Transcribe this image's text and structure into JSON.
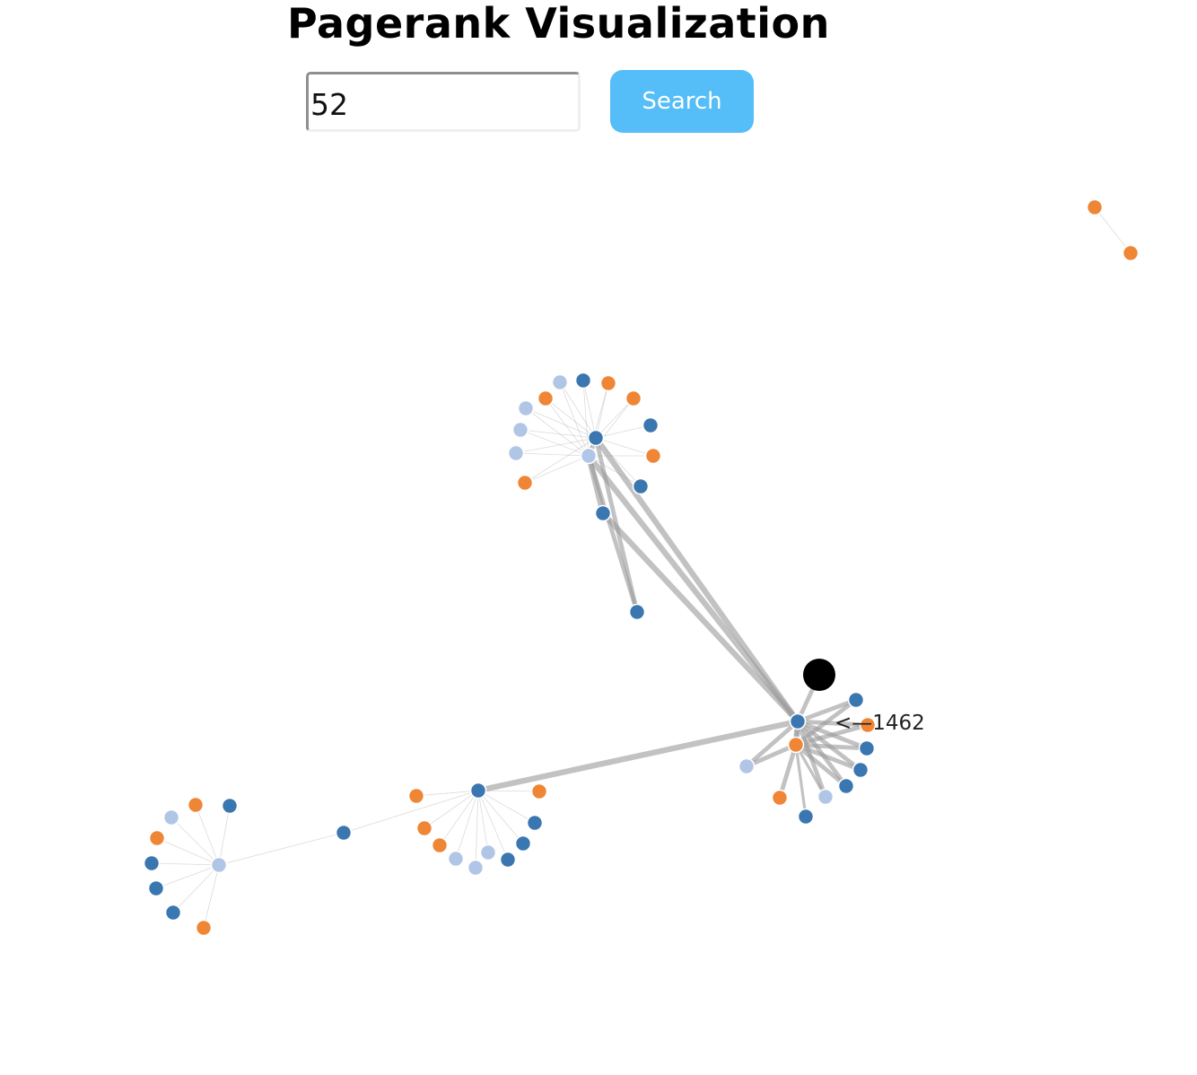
{
  "header": {
    "title": "Pagerank Visualization"
  },
  "search": {
    "value": "52",
    "button_label": "Search"
  },
  "colors": {
    "group1": "#3a76af",
    "group2": "#ef8636",
    "group3": "#b1c6e6",
    "highlight": "#000000",
    "link": "#999999"
  },
  "graph": {
    "nodes": [
      {
        "id": "h1",
        "group": 1
      },
      {
        "id": "h2",
        "group": 3
      },
      {
        "id": "h3",
        "group": 1
      },
      {
        "id": "h4",
        "group": 1
      },
      {
        "id": "h5",
        "group": 2
      },
      {
        "id": "h6",
        "group": 1
      },
      {
        "id": "h7",
        "group": 3
      },
      {
        "id": "c1",
        "group": 1
      },
      {
        "id": "c2",
        "group": 3
      },
      {
        "id": "c3",
        "group": 2
      },
      {
        "id": "c4",
        "group": 2
      },
      {
        "id": "c5",
        "group": 1
      },
      {
        "id": "c6",
        "group": 2
      },
      {
        "id": "c7",
        "group": 1
      },
      {
        "id": "c8",
        "group": 2
      },
      {
        "id": "c9",
        "group": 2
      },
      {
        "id": "c10",
        "group": 3
      },
      {
        "id": "c11",
        "group": 3
      },
      {
        "id": "c12",
        "group": 3
      },
      {
        "id": "c13",
        "group": 3
      },
      {
        "id": "c14",
        "group": 1
      },
      {
        "id": "c15",
        "group": 2
      },
      {
        "id": "c16",
        "group": 1
      },
      {
        "id": "r1",
        "group": 1
      },
      {
        "id": "r2",
        "group": 2
      },
      {
        "id": "r3",
        "group": 1
      },
      {
        "id": "r4",
        "group": 1
      },
      {
        "id": "r5",
        "group": 2
      },
      {
        "id": "r6",
        "group": 1
      },
      {
        "id": "r7",
        "group": 1
      },
      {
        "id": "r8",
        "group": 1
      },
      {
        "id": "r9",
        "group": 3
      },
      {
        "id": "r10",
        "group": 1
      },
      {
        "id": "r11",
        "group": 2
      },
      {
        "id": "r12",
        "group": 3
      },
      {
        "id": "r13",
        "group": 4,
        "label": "<—1462"
      },
      {
        "id": "b1",
        "group": 1
      },
      {
        "id": "b2",
        "group": 2
      },
      {
        "id": "b3",
        "group": 2
      },
      {
        "id": "b4",
        "group": 1
      },
      {
        "id": "b5",
        "group": 1
      },
      {
        "id": "b6",
        "group": 1
      },
      {
        "id": "b7",
        "group": 3
      },
      {
        "id": "b8",
        "group": 3
      },
      {
        "id": "b9",
        "group": 3
      },
      {
        "id": "b10",
        "group": 2
      },
      {
        "id": "b11",
        "group": 2
      },
      {
        "id": "b12",
        "group": 1
      },
      {
        "id": "l1",
        "group": 3
      },
      {
        "id": "l2",
        "group": 2
      },
      {
        "id": "l3",
        "group": 3
      },
      {
        "id": "l4",
        "group": 1
      },
      {
        "id": "l5",
        "group": 2
      },
      {
        "id": "l6",
        "group": 1
      },
      {
        "id": "l7",
        "group": 1
      },
      {
        "id": "l8",
        "group": 1
      },
      {
        "id": "l9",
        "group": 2
      },
      {
        "id": "t1",
        "group": 2
      },
      {
        "id": "t2",
        "group": 2
      }
    ],
    "links": [
      {
        "source": "h1",
        "target": "c2",
        "value": 3
      },
      {
        "source": "h1",
        "target": "c1",
        "value": 3
      },
      {
        "source": "h2",
        "target": "c1",
        "value": 4
      },
      {
        "source": "h2",
        "target": "c16",
        "value": 4
      },
      {
        "source": "h2",
        "target": "c2",
        "value": 4
      },
      {
        "source": "h2",
        "target": "r1",
        "value": 4
      },
      {
        "source": "h2",
        "target": "r2",
        "value": 4
      },
      {
        "source": "h2",
        "target": "b1",
        "value": 4
      },
      {
        "source": "b1",
        "target": "h3",
        "value": 1
      },
      {
        "source": "b1",
        "target": "b2",
        "value": 0.5
      },
      {
        "source": "b1",
        "target": "b3",
        "value": 0.5
      },
      {
        "source": "b1",
        "target": "b4",
        "value": 0.5
      },
      {
        "source": "b1",
        "target": "b5",
        "value": 0.5
      },
      {
        "source": "b1",
        "target": "b6",
        "value": 0.5
      },
      {
        "source": "b1",
        "target": "b7",
        "value": 0.5
      },
      {
        "source": "b1",
        "target": "b8",
        "value": 0.5
      },
      {
        "source": "b1",
        "target": "b9",
        "value": 0.5
      },
      {
        "source": "b1",
        "target": "b10",
        "value": 0.5
      },
      {
        "source": "b1",
        "target": "b11",
        "value": 0.5
      },
      {
        "source": "b1",
        "target": "b12",
        "value": 0.5
      },
      {
        "source": "b12",
        "target": "l1",
        "value": 0.5
      },
      {
        "source": "l1",
        "target": "l2",
        "value": 0.5
      },
      {
        "source": "l1",
        "target": "l3",
        "value": 0.5
      },
      {
        "source": "l1",
        "target": "l4",
        "value": 0.5
      },
      {
        "source": "l1",
        "target": "l5",
        "value": 0.5
      },
      {
        "source": "l1",
        "target": "l6",
        "value": 0.5
      },
      {
        "source": "l1",
        "target": "l7",
        "value": 0.5
      },
      {
        "source": "l1",
        "target": "l8",
        "value": 0.5
      },
      {
        "source": "l1",
        "target": "l9",
        "value": 0.5
      },
      {
        "source": "c1",
        "target": "c2",
        "value": 3
      },
      {
        "source": "c1",
        "target": "c3",
        "value": 0.5
      },
      {
        "source": "c1",
        "target": "c4",
        "value": 0.5
      },
      {
        "source": "c1",
        "target": "c5",
        "value": 0.5
      },
      {
        "source": "c1",
        "target": "c6",
        "value": 0.5
      },
      {
        "source": "c1",
        "target": "c7",
        "value": 0.5
      },
      {
        "source": "c1",
        "target": "c8",
        "value": 0.5
      },
      {
        "source": "c1",
        "target": "c9",
        "value": 0.5
      },
      {
        "source": "c1",
        "target": "c10",
        "value": 0.5
      },
      {
        "source": "c1",
        "target": "c11",
        "value": 0.5
      },
      {
        "source": "c1",
        "target": "c12",
        "value": 0.5
      },
      {
        "source": "c1",
        "target": "c13",
        "value": 0.5
      },
      {
        "source": "c1",
        "target": "c14",
        "value": 0.5
      },
      {
        "source": "c1",
        "target": "c15",
        "value": 0.5
      },
      {
        "source": "c2",
        "target": "c3",
        "value": 0.5
      },
      {
        "source": "c2",
        "target": "c4",
        "value": 0.5
      },
      {
        "source": "c2",
        "target": "c5",
        "value": 0.5
      },
      {
        "source": "c2",
        "target": "c6",
        "value": 0.5
      },
      {
        "source": "c2",
        "target": "c8",
        "value": 0.5
      },
      {
        "source": "c2",
        "target": "c9",
        "value": 0.5
      },
      {
        "source": "c2",
        "target": "c10",
        "value": 0.5
      },
      {
        "source": "c2",
        "target": "c11",
        "value": 0.5
      },
      {
        "source": "c2",
        "target": "c12",
        "value": 0.5
      },
      {
        "source": "c2",
        "target": "c13",
        "value": 0.5
      },
      {
        "source": "c2",
        "target": "c14",
        "value": 0.5
      },
      {
        "source": "c16",
        "target": "c2",
        "value": 4
      },
      {
        "source": "r1",
        "target": "r2",
        "value": 3
      },
      {
        "source": "r1",
        "target": "r3",
        "value": 3
      },
      {
        "source": "r1",
        "target": "r4",
        "value": 3
      },
      {
        "source": "r1",
        "target": "r5",
        "value": 3
      },
      {
        "source": "r1",
        "target": "r6",
        "value": 3
      },
      {
        "source": "r1",
        "target": "r7",
        "value": 3
      },
      {
        "source": "r1",
        "target": "r9",
        "value": 3
      },
      {
        "source": "r1",
        "target": "r12",
        "value": 3
      },
      {
        "source": "r1",
        "target": "r13",
        "value": 3
      },
      {
        "source": "r2",
        "target": "r3",
        "value": 3
      },
      {
        "source": "r2",
        "target": "r4",
        "value": 3
      },
      {
        "source": "r2",
        "target": "r5",
        "value": 3
      },
      {
        "source": "r2",
        "target": "r6",
        "value": 3
      },
      {
        "source": "r2",
        "target": "r7",
        "value": 3
      },
      {
        "source": "r2",
        "target": "r8",
        "value": 2
      },
      {
        "source": "r2",
        "target": "r9",
        "value": 2
      },
      {
        "source": "r2",
        "target": "r10",
        "value": 2
      },
      {
        "source": "r2",
        "target": "r11",
        "value": 3
      },
      {
        "source": "r2",
        "target": "r12",
        "value": 3
      },
      {
        "source": "t1",
        "target": "t2",
        "value": 0.5
      }
    ]
  }
}
